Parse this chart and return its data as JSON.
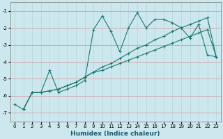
{
  "xlabel": "Humidex (Indice chaleur)",
  "bg_color": "#cce8ee",
  "grid_color_v": "#b8d8de",
  "grid_color_h": "#d4a0a0",
  "line_color": "#1a7a6e",
  "xlim": [
    -0.5,
    23.5
  ],
  "ylim": [
    -7.5,
    -0.5
  ],
  "yticks": [
    -7,
    -6,
    -5,
    -4,
    -3,
    -2,
    -1
  ],
  "xticks": [
    0,
    1,
    2,
    3,
    4,
    5,
    6,
    7,
    8,
    9,
    10,
    11,
    12,
    13,
    14,
    15,
    16,
    17,
    18,
    19,
    20,
    21,
    22,
    23
  ],
  "series1_x": [
    0,
    1,
    2,
    3,
    4,
    5,
    6,
    7,
    8,
    9,
    10,
    11,
    12,
    13,
    14,
    15,
    16,
    17,
    18,
    19,
    20,
    21,
    22,
    23
  ],
  "series1_y": [
    -6.5,
    -6.8,
    -5.8,
    -5.8,
    -4.5,
    -5.8,
    -5.6,
    -5.4,
    -5.1,
    -2.1,
    -1.3,
    -2.2,
    -3.4,
    -2.0,
    -1.1,
    -2.0,
    -1.5,
    -1.5,
    -1.7,
    -2.0,
    -2.6,
    -1.8,
    -3.6,
    -3.7
  ],
  "series2_x": [
    1,
    23
  ],
  "series2_y": [
    -6.8,
    -3.7
  ],
  "series3_x": [
    1,
    23
  ],
  "series3_y": [
    -6.8,
    -3.7
  ],
  "line1_x": [
    1,
    2,
    3,
    4,
    5,
    6,
    7,
    8,
    9,
    10,
    11,
    12,
    13,
    14,
    15,
    16,
    17,
    18,
    19,
    20,
    21,
    22,
    23
  ],
  "line1_y": [
    -6.8,
    -5.8,
    -5.8,
    -5.7,
    -5.6,
    -5.4,
    -5.2,
    -4.9,
    -4.6,
    -4.3,
    -4.1,
    -3.8,
    -3.5,
    -3.2,
    -3.0,
    -2.7,
    -2.5,
    -2.2,
    -2.0,
    -1.8,
    -1.6,
    -1.4,
    -3.7
  ],
  "line2_x": [
    1,
    2,
    3,
    4,
    5,
    6,
    7,
    8,
    9,
    10,
    11,
    12,
    13,
    14,
    15,
    16,
    17,
    18,
    19,
    20,
    21,
    22,
    23
  ],
  "line2_y": [
    -6.8,
    -5.8,
    -5.8,
    -5.7,
    -5.6,
    -5.4,
    -5.2,
    -4.9,
    -4.6,
    -4.5,
    -4.3,
    -4.1,
    -3.9,
    -3.7,
    -3.5,
    -3.3,
    -3.1,
    -2.9,
    -2.7,
    -2.5,
    -2.3,
    -2.1,
    -3.7
  ]
}
